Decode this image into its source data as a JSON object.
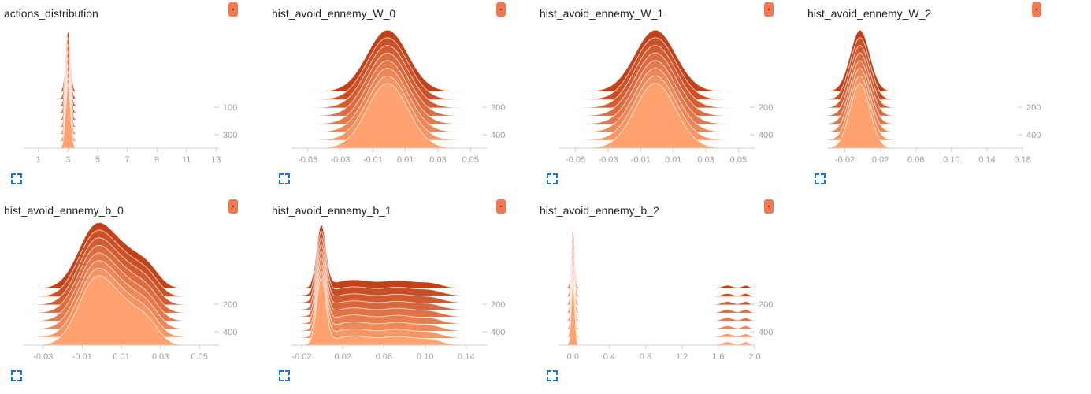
{
  "cards": [
    {
      "title": "actions_distribution",
      "expand_icon": "fullscreen-icon"
    },
    {
      "title": "hist_avoid_ennemy_W_0",
      "expand_icon": "fullscreen-icon"
    },
    {
      "title": "hist_avoid_ennemy_W_1",
      "expand_icon": "fullscreen-icon"
    },
    {
      "title": "hist_avoid_ennemy_W_2",
      "expand_icon": "fullscreen-icon"
    },
    {
      "title": "hist_avoid_ennemy_b_0",
      "expand_icon": "fullscreen-icon"
    },
    {
      "title": "hist_avoid_ennemy_b_1",
      "expand_icon": "fullscreen-icon"
    },
    {
      "title": "hist_avoid_ennemy_b_2",
      "expand_icon": "fullscreen-icon"
    }
  ],
  "colors": {
    "oldest": "#ffa270",
    "newest": "#c1421a",
    "badge": "#f4784f",
    "icon": "#1976d2"
  },
  "chart_data": [
    {
      "type": "area",
      "title": "actions_distribution",
      "x_ticks": [
        "1",
        "3",
        "5",
        "7",
        "9",
        "11",
        "13"
      ],
      "xlim": [
        0,
        13.2
      ],
      "step_ticks": [
        "100",
        "300"
      ],
      "steps": 9,
      "shape": {
        "kind": "spike",
        "peaks": [
          {
            "mu": 3,
            "sigma": 0.16,
            "amp": 1
          }
        ]
      }
    },
    {
      "type": "area",
      "title": "hist_avoid_ennemy_W_0",
      "x_ticks": [
        "-0.05",
        "-0.03",
        "-0.01",
        "0.01",
        "0.03",
        "0.05"
      ],
      "xlim": [
        -0.06,
        0.06
      ],
      "step_ticks": [
        "200",
        "400"
      ],
      "steps": 8,
      "shape": {
        "kind": "gauss",
        "peaks": [
          {
            "mu": -0.001,
            "sigma": 0.0125,
            "amp": 1
          }
        ]
      }
    },
    {
      "type": "area",
      "title": "hist_avoid_ennemy_W_1",
      "x_ticks": [
        "-0.05",
        "-0.03",
        "-0.01",
        "0.01",
        "0.03",
        "0.05"
      ],
      "xlim": [
        -0.06,
        0.06
      ],
      "step_ticks": [
        "200",
        "400"
      ],
      "steps": 8,
      "shape": {
        "kind": "gauss",
        "peaks": [
          {
            "mu": -0.001,
            "sigma": 0.0125,
            "amp": 1
          }
        ]
      }
    },
    {
      "type": "area",
      "title": "hist_avoid_ennemy_W_2",
      "x_ticks": [
        "-0.02",
        "0.02",
        "0.06",
        "0.10",
        "0.14",
        "0.18"
      ],
      "xlim": [
        -0.04,
        0.18
      ],
      "step_ticks": [
        "200",
        "400"
      ],
      "steps": 8,
      "shape": {
        "kind": "gauss",
        "peaks": [
          {
            "mu": -0.003,
            "sigma": 0.011,
            "amp": 1
          }
        ]
      }
    },
    {
      "type": "area",
      "title": "hist_avoid_ennemy_b_0",
      "x_ticks": [
        "-0.03",
        "-0.01",
        "0.01",
        "0.03",
        "0.05"
      ],
      "xlim": [
        -0.04,
        0.06
      ],
      "step_ticks": [
        "200",
        "400"
      ],
      "steps": 8,
      "shape": {
        "kind": "gauss",
        "peaks": [
          {
            "mu": -0.003,
            "sigma": 0.009,
            "amp": 1
          },
          {
            "mu": 0.013,
            "sigma": 0.008,
            "amp": 0.45
          },
          {
            "mu": 0.024,
            "sigma": 0.006,
            "amp": 0.25
          }
        ]
      }
    },
    {
      "type": "area",
      "title": "hist_avoid_ennemy_b_1",
      "x_ticks": [
        "-0.02",
        "0.02",
        "0.06",
        "0.10",
        "0.14"
      ],
      "xlim": [
        -0.03,
        0.16
      ],
      "step_ticks": [
        "200",
        "400"
      ],
      "steps": 9,
      "shape": {
        "kind": "gauss",
        "peaks": [
          {
            "mu": -0.001,
            "sigma": 0.0045,
            "amp": 1
          },
          {
            "mu": 0.03,
            "sigma": 0.02,
            "amp": 0.14
          },
          {
            "mu": 0.075,
            "sigma": 0.015,
            "amp": 0.12
          },
          {
            "mu": 0.105,
            "sigma": 0.012,
            "amp": 0.08
          }
        ]
      }
    },
    {
      "type": "area",
      "title": "hist_avoid_ennemy_b_2",
      "x_ticks": [
        "0.0",
        "0.4",
        "0.8",
        "1.2",
        "1.6",
        "2.0"
      ],
      "xlim": [
        -0.15,
        2.0
      ],
      "step_ticks": [
        "200",
        "400"
      ],
      "steps": 8,
      "shape": {
        "kind": "spike",
        "peaks": [
          {
            "mu": 0.0,
            "sigma": 0.018,
            "amp": 1
          },
          {
            "mu": 1.7,
            "sigma": 0.06,
            "amp": 0.05
          },
          {
            "mu": 1.9,
            "sigma": 0.04,
            "amp": 0.05
          }
        ]
      }
    }
  ]
}
